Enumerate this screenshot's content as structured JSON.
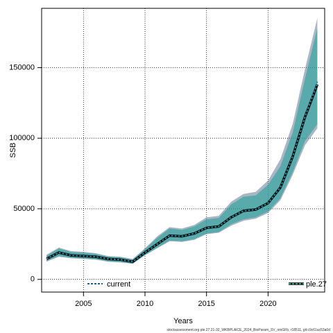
{
  "chart_data": {
    "type": "area",
    "xlabel": "Years",
    "ylabel": "SSB",
    "xlim": [
      2001.6,
      2024.6
    ],
    "ylim": [
      -9000,
      192000
    ],
    "x_ticks": [
      2005,
      2010,
      2015,
      2020
    ],
    "y_ticks": [
      0,
      50000,
      100000,
      150000
    ],
    "y_tick_labels": [
      "0",
      "50000",
      "100000",
      "150000"
    ],
    "grid": "dotted",
    "footer": "stockassessment.org ple.27.21-32_WKBPLAICE_2024_BioParam_SV_nmGFb, r18511, git:c9c61ac53a0d",
    "series": [
      {
        "name": "current",
        "color": "#1f5f8f",
        "x": [
          2002,
          2003,
          2004,
          2005,
          2006,
          2007,
          2008,
          2009,
          2010,
          2011,
          2012,
          2013,
          2014,
          2015,
          2016,
          2017,
          2018,
          2019,
          2020,
          2021,
          2022,
          2023,
          2024
        ],
        "y": [
          14500,
          19000,
          17000,
          16500,
          16000,
          14500,
          14000,
          12500,
          19000,
          25000,
          31000,
          30500,
          32500,
          36500,
          37500,
          44000,
          48500,
          49500,
          54000,
          65000,
          87000,
          115000,
          140000
        ],
        "lower": [
          12500,
          16000,
          15000,
          14500,
          14000,
          12500,
          12000,
          11000,
          17000,
          22000,
          27000,
          26500,
          28000,
          32000,
          33000,
          38000,
          41500,
          43000,
          47000,
          56000,
          74000,
          95000,
          107000
        ],
        "upper": [
          17500,
          22500,
          20000,
          19500,
          18500,
          16500,
          16000,
          14500,
          22000,
          30500,
          37000,
          36000,
          38500,
          44000,
          45000,
          55000,
          60500,
          62000,
          70000,
          85000,
          110000,
          149000,
          185000
        ]
      },
      {
        "name": "ple.27",
        "color": "#000000",
        "x": [
          2002,
          2003,
          2004,
          2005,
          2006,
          2007,
          2008,
          2009,
          2010,
          2011,
          2012,
          2013,
          2014,
          2015,
          2016,
          2017,
          2018,
          2019,
          2020,
          2021,
          2022,
          2023,
          2024
        ],
        "y": [
          14500,
          19000,
          17000,
          16500,
          16000,
          14500,
          14000,
          12500,
          19000,
          25000,
          31000,
          30500,
          32500,
          36500,
          37500,
          44000,
          48500,
          49500,
          54000,
          65000,
          87000,
          115000,
          138000
        ],
        "lower": [
          13000,
          16500,
          15300,
          14800,
          14300,
          12800,
          12300,
          11200,
          17300,
          22500,
          27500,
          27000,
          28500,
          32500,
          33500,
          39000,
          42500,
          44000,
          48000,
          57500,
          76000,
          98000,
          110000
        ],
        "upper": [
          16800,
          21800,
          19400,
          18900,
          18000,
          16100,
          15600,
          14100,
          21400,
          29500,
          36000,
          35000,
          37500,
          42500,
          43500,
          53000,
          58500,
          59500,
          67000,
          80000,
          104000,
          142000,
          178000
        ]
      }
    ],
    "legend": [
      {
        "label": "current",
        "position": "bottom-left"
      },
      {
        "label": "ple.27",
        "position": "bottom-right"
      }
    ]
  }
}
